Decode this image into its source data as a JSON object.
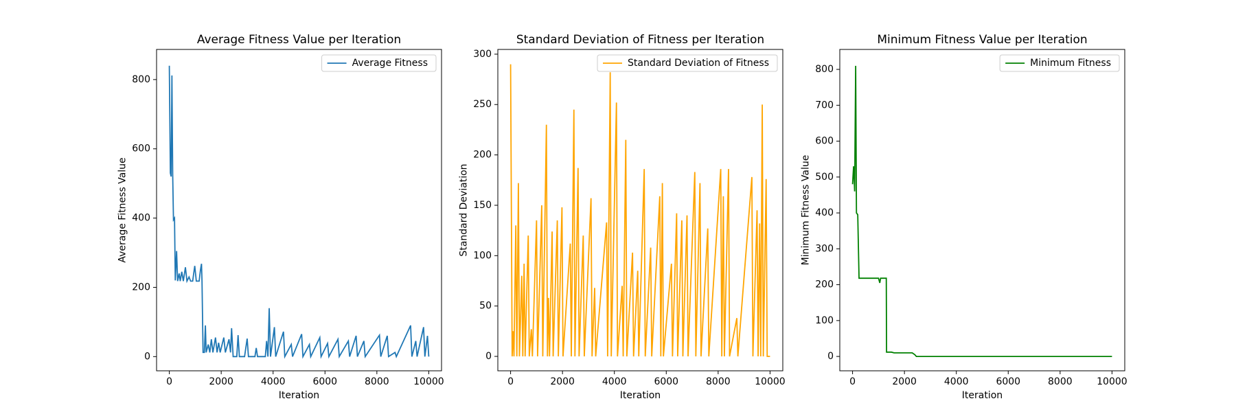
{
  "chart_data": [
    {
      "type": "line",
      "title": "Average Fitness Value per Iteration",
      "x_label": "Iteration",
      "y_label": "Average Fitness Value",
      "legend": "upper right",
      "xlim": [
        -492,
        10492
      ],
      "ylim": [
        -41,
        887
      ],
      "xticks": [
        0,
        2000,
        4000,
        6000,
        8000,
        10000
      ],
      "yticks": [
        0,
        200,
        400,
        600,
        800
      ],
      "x": [
        0,
        40,
        70,
        100,
        130,
        160,
        200,
        230,
        280,
        320,
        380,
        420,
        480,
        540,
        620,
        680,
        760,
        820,
        900,
        980,
        1040,
        1150,
        1200,
        1240,
        1260,
        1300,
        1350,
        1390,
        1420,
        1500,
        1560,
        1620,
        1680,
        1780,
        1840,
        1900,
        1960,
        2100,
        2160,
        2300,
        2360,
        2400,
        2460,
        2600,
        2650,
        2700,
        2900,
        3000,
        3050,
        3300,
        3350,
        3400,
        3700,
        3750,
        3800,
        3850,
        3900,
        4050,
        4100,
        4400,
        4450,
        4700,
        4750,
        5100,
        5150,
        5400,
        5450,
        5800,
        5850,
        6100,
        6150,
        6500,
        6550,
        6900,
        6950,
        7200,
        7250,
        7500,
        7550,
        8100,
        8150,
        8400,
        8450,
        8700,
        8750,
        9300,
        9350,
        9500,
        9550,
        9800,
        9850,
        9950,
        10000
      ],
      "series": [
        {
          "name": "Average Fitness",
          "color": "#1f77b4",
          "values": [
            840,
            530,
            520,
            812,
            525,
            395,
            400,
            220,
            305,
            218,
            240,
            218,
            245,
            218,
            258,
            218,
            230,
            218,
            218,
            262,
            218,
            218,
            250,
            268,
            218,
            12,
            12,
            90,
            12,
            35,
            12,
            50,
            12,
            55,
            12,
            40,
            12,
            55,
            12,
            50,
            12,
            82,
            0,
            0,
            62,
            0,
            0,
            52,
            0,
            0,
            25,
            0,
            0,
            45,
            0,
            140,
            0,
            85,
            0,
            72,
            0,
            35,
            0,
            65,
            0,
            35,
            0,
            55,
            0,
            38,
            0,
            50,
            0,
            45,
            0,
            60,
            0,
            45,
            0,
            62,
            0,
            60,
            0,
            12,
            0,
            90,
            0,
            45,
            0,
            85,
            0,
            60,
            0
          ]
        }
      ]
    },
    {
      "type": "line",
      "title": "Standard Deviation of Fitness per Iteration",
      "x_label": "Iteration",
      "y_label": "Standard Deviation",
      "legend": "upper right",
      "xlim": [
        -492,
        10492
      ],
      "ylim": [
        -14.3,
        304.7
      ],
      "xticks": [
        0,
        2000,
        4000,
        6000,
        8000,
        10000
      ],
      "yticks": [
        0,
        50,
        100,
        150,
        200,
        250,
        300
      ],
      "x": [
        0,
        60,
        100,
        130,
        200,
        240,
        300,
        340,
        430,
        470,
        520,
        560,
        680,
        720,
        800,
        840,
        1000,
        1040,
        1200,
        1240,
        1380,
        1420,
        1460,
        1500,
        1600,
        1640,
        1800,
        1840,
        1980,
        2020,
        2300,
        2340,
        2440,
        2480,
        2600,
        2640,
        2800,
        2840,
        3100,
        3140,
        3240,
        3280,
        3700,
        3740,
        3840,
        3880,
        4080,
        4120,
        4300,
        4340,
        4440,
        4480,
        4700,
        4740,
        4900,
        4940,
        5150,
        5190,
        5400,
        5440,
        5750,
        5790,
        5850,
        5890,
        6200,
        6240,
        6400,
        6440,
        6600,
        6640,
        6800,
        6840,
        7100,
        7140,
        7300,
        7340,
        7600,
        7640,
        8100,
        8140,
        8200,
        8240,
        8400,
        8440,
        8720,
        8760,
        9300,
        9340,
        9500,
        9540,
        9600,
        9640,
        9700,
        9740,
        9850,
        9890,
        10000
      ],
      "series": [
        {
          "name": "Standard Deviation of Fitness",
          "color": "#ffa500",
          "values": [
            290,
            0,
            25,
            0,
            130,
            0,
            172,
            0,
            80,
            0,
            92,
            0,
            120,
            0,
            27,
            0,
            135,
            0,
            150,
            0,
            230,
            0,
            58,
            0,
            124,
            0,
            135,
            0,
            148,
            0,
            112,
            0,
            245,
            0,
            187,
            0,
            120,
            0,
            157,
            0,
            68,
            0,
            133,
            0,
            282,
            0,
            252,
            0,
            70,
            0,
            215,
            0,
            103,
            0,
            85,
            0,
            186,
            0,
            108,
            0,
            159,
            0,
            172,
            0,
            92,
            0,
            142,
            0,
            135,
            0,
            140,
            0,
            183,
            0,
            172,
            0,
            127,
            0,
            186,
            0,
            159,
            0,
            186,
            0,
            38,
            0,
            178,
            0,
            145,
            0,
            132,
            0,
            250,
            0,
            176,
            0,
            0
          ]
        }
      ]
    },
    {
      "type": "line",
      "title": "Minimum Fitness Value per Iteration",
      "x_label": "Iteration",
      "y_label": "Minimum Fitness Value",
      "legend": "upper right",
      "xlim": [
        -492,
        10492
      ],
      "ylim": [
        -40,
        855.6
      ],
      "xticks": [
        0,
        2000,
        4000,
        6000,
        8000,
        10000
      ],
      "yticks": [
        0,
        100,
        200,
        300,
        400,
        500,
        600,
        700,
        800
      ],
      "x": [
        0,
        40,
        60,
        80,
        120,
        150,
        200,
        250,
        500,
        1000,
        1050,
        1080,
        1300,
        1310,
        1500,
        1600,
        2300,
        2400,
        2460,
        10000
      ],
      "series": [
        {
          "name": "Minimum Fitness",
          "color": "#008000",
          "values": [
            480,
            530,
            500,
            460,
            810,
            400,
            395,
            218,
            218,
            218,
            205,
            218,
            218,
            12,
            12,
            10,
            10,
            5,
            0,
            0
          ]
        }
      ]
    }
  ]
}
